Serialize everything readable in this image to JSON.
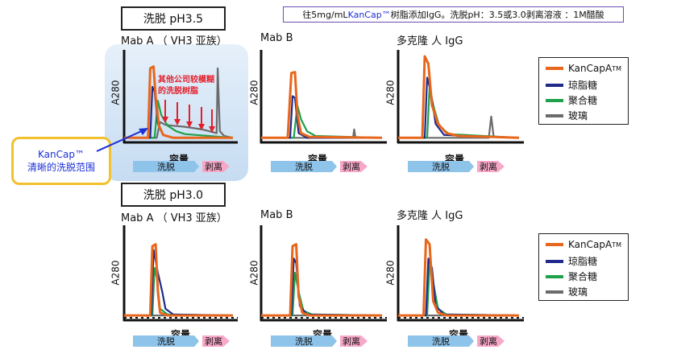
{
  "header_note": {
    "prefix": "往5mg/mL ",
    "highlight": "KanCap™",
    "suffix": " 树脂添加IgG。洗脱pH：3.5或3.0剥离溶液 ：1M醋酸"
  },
  "sections": [
    {
      "title": "洗脱 pH3.5"
    },
    {
      "title": "洗脱 pH3.0"
    }
  ],
  "panel_titles": [
    "Mab A （ VH3 亚族）",
    "Mab B",
    "多克隆 人 IgG"
  ],
  "y_label": "A280",
  "x_label": "容量",
  "arrow_labels": {
    "elution": "洗脱",
    "strip": "剥离"
  },
  "legend": [
    {
      "label": "KanCapA",
      "sup": "TM",
      "color": "#e8661c"
    },
    {
      "label": "琼脂糖",
      "sup": "",
      "color": "#1f2a8a"
    },
    {
      "label": "聚合糖",
      "sup": "",
      "color": "#1fa04a"
    },
    {
      "label": "玻璃",
      "sup": "",
      "color": "#6b6b6b"
    }
  ],
  "callout": {
    "line1": "KanCap™",
    "line2": "清晰的洗脱范围"
  },
  "annotation": {
    "line1": "其他公司较模糊",
    "line2": "的洗脱树脂"
  },
  "colors": {
    "kancap": "#e8661c",
    "agarose": "#1f2a8a",
    "polysaccharide": "#1fa04a",
    "glass": "#6b6b6b",
    "arrow_elution": "#8ec3ea",
    "arrow_strip": "#f7a8c8",
    "annotation": "#e41e2b"
  },
  "chart_data": [
    {
      "type": "line",
      "section": "洗脱 pH3.5",
      "title": "Mab A （ VH3 亚族）",
      "xlabel": "容量",
      "ylabel": "A280",
      "x_range": [
        0,
        100
      ],
      "y_range": [
        0,
        100
      ],
      "series": [
        {
          "name": "KanCapA™",
          "points": [
            [
              0,
              5
            ],
            [
              22,
              5
            ],
            [
              24,
              80
            ],
            [
              27,
              82
            ],
            [
              29,
              50
            ],
            [
              32,
              18
            ],
            [
              36,
              8
            ],
            [
              45,
              5
            ],
            [
              100,
              5
            ]
          ]
        },
        {
          "name": "琼脂糖",
          "points": [
            [
              0,
              5
            ],
            [
              24,
              5
            ],
            [
              26,
              60
            ],
            [
              28,
              55
            ],
            [
              31,
              20
            ],
            [
              36,
              8
            ],
            [
              45,
              5
            ],
            [
              100,
              5
            ]
          ]
        },
        {
          "name": "聚合糖",
          "points": [
            [
              0,
              5
            ],
            [
              28,
              5
            ],
            [
              31,
              45
            ],
            [
              34,
              30
            ],
            [
              40,
              18
            ],
            [
              48,
              12
            ],
            [
              56,
              9
            ],
            [
              100,
              5
            ]
          ]
        },
        {
          "name": "玻璃",
          "points": [
            [
              0,
              5
            ],
            [
              30,
              5
            ],
            [
              33,
              22
            ],
            [
              38,
              19
            ],
            [
              45,
              18
            ],
            [
              55,
              17
            ],
            [
              72,
              14
            ],
            [
              85,
              10
            ],
            [
              86,
              80
            ],
            [
              88,
              12
            ],
            [
              92,
              7
            ],
            [
              100,
              5
            ]
          ]
        }
      ]
    },
    {
      "type": "line",
      "section": "洗脱 pH3.5",
      "title": "Mab B",
      "xlabel": "容量",
      "ylabel": "A280",
      "x_range": [
        0,
        100
      ],
      "y_range": [
        0,
        100
      ],
      "series": [
        {
          "name": "KanCapA™",
          "points": [
            [
              0,
              5
            ],
            [
              22,
              5
            ],
            [
              25,
              75
            ],
            [
              28,
              76
            ],
            [
              30,
              30
            ],
            [
              33,
              10
            ],
            [
              40,
              6
            ],
            [
              100,
              5
            ]
          ]
        },
        {
          "name": "琼脂糖",
          "points": [
            [
              0,
              5
            ],
            [
              24,
              5
            ],
            [
              26,
              50
            ],
            [
              28,
              48
            ],
            [
              31,
              10
            ],
            [
              38,
              5
            ],
            [
              100,
              5
            ]
          ]
        },
        {
          "name": "聚合糖",
          "points": [
            [
              0,
              5
            ],
            [
              27,
              5
            ],
            [
              30,
              40
            ],
            [
              33,
              25
            ],
            [
              38,
              12
            ],
            [
              45,
              7
            ],
            [
              100,
              5
            ]
          ]
        },
        {
          "name": "玻璃",
          "points": [
            [
              0,
              5
            ],
            [
              76,
              5
            ],
            [
              77,
              14
            ],
            [
              78,
              5
            ],
            [
              100,
              5
            ]
          ]
        }
      ]
    },
    {
      "type": "line",
      "section": "洗脱 pH3.5",
      "title": "多克隆 人 IgG",
      "xlabel": "容量",
      "ylabel": "A280",
      "x_range": [
        0,
        100
      ],
      "y_range": [
        0,
        100
      ],
      "series": [
        {
          "name": "KanCapA™",
          "points": [
            [
              0,
              5
            ],
            [
              20,
              5
            ],
            [
              22,
              93
            ],
            [
              25,
              85
            ],
            [
              28,
              40
            ],
            [
              33,
              20
            ],
            [
              40,
              10
            ],
            [
              50,
              7
            ],
            [
              100,
              5
            ]
          ]
        },
        {
          "name": "琼脂糖",
          "points": [
            [
              0,
              5
            ],
            [
              22,
              5
            ],
            [
              24,
              70
            ],
            [
              27,
              55
            ],
            [
              31,
              20
            ],
            [
              38,
              8
            ],
            [
              100,
              5
            ]
          ]
        },
        {
          "name": "聚合糖",
          "points": [
            [
              0,
              5
            ],
            [
              24,
              5
            ],
            [
              26,
              60
            ],
            [
              29,
              40
            ],
            [
              34,
              18
            ],
            [
              42,
              9
            ],
            [
              100,
              5
            ]
          ]
        },
        {
          "name": "玻璃",
          "points": [
            [
              0,
              5
            ],
            [
              75,
              5
            ],
            [
              77,
              28
            ],
            [
              79,
              6
            ],
            [
              100,
              5
            ]
          ]
        }
      ]
    },
    {
      "type": "line",
      "section": "洗脱 pH3.0",
      "title": "Mab A （ VH3 亚族）",
      "xlabel": "容量",
      "ylabel": "A280",
      "x_range": [
        0,
        100
      ],
      "y_range": [
        0,
        100
      ],
      "series": [
        {
          "name": "KanCapA™",
          "points": [
            [
              0,
              5
            ],
            [
              24,
              5
            ],
            [
              26,
              78
            ],
            [
              29,
              80
            ],
            [
              31,
              30
            ],
            [
              33,
              8
            ],
            [
              40,
              5
            ],
            [
              100,
              5
            ]
          ]
        },
        {
          "name": "琼脂糖",
          "points": [
            [
              0,
              5
            ],
            [
              25,
              5
            ],
            [
              27,
              74
            ],
            [
              31,
              50
            ],
            [
              35,
              30
            ],
            [
              38,
              12
            ],
            [
              45,
              6
            ],
            [
              100,
              5
            ]
          ]
        },
        {
          "name": "聚合糖",
          "points": [
            [
              0,
              5
            ],
            [
              26,
              5
            ],
            [
              28,
              55
            ],
            [
              30,
              45
            ],
            [
              33,
              12
            ],
            [
              40,
              6
            ],
            [
              100,
              5
            ]
          ]
        },
        {
          "name": "玻璃",
          "points": [
            [
              0,
              5
            ],
            [
              100,
              5
            ]
          ]
        }
      ]
    },
    {
      "type": "line",
      "section": "洗脱 pH3.0",
      "title": "Mab B",
      "xlabel": "容量",
      "ylabel": "A280",
      "x_range": [
        0,
        100
      ],
      "y_range": [
        0,
        100
      ],
      "series": [
        {
          "name": "KanCapA™",
          "points": [
            [
              0,
              5
            ],
            [
              24,
              5
            ],
            [
              26,
              78
            ],
            [
              29,
              80
            ],
            [
              31,
              25
            ],
            [
              34,
              8
            ],
            [
              40,
              5
            ],
            [
              100,
              5
            ]
          ]
        },
        {
          "name": "琼脂糖",
          "points": [
            [
              0,
              5
            ],
            [
              25,
              5
            ],
            [
              27,
              65
            ],
            [
              29,
              60
            ],
            [
              32,
              15
            ],
            [
              38,
              6
            ],
            [
              100,
              5
            ]
          ]
        },
        {
          "name": "聚合糖",
          "points": [
            [
              0,
              5
            ],
            [
              26,
              5
            ],
            [
              28,
              50
            ],
            [
              31,
              30
            ],
            [
              35,
              10
            ],
            [
              42,
              6
            ],
            [
              100,
              5
            ]
          ]
        },
        {
          "name": "玻璃",
          "points": [
            [
              0,
              5
            ],
            [
              100,
              5
            ]
          ]
        }
      ]
    },
    {
      "type": "line",
      "section": "洗脱 pH3.0",
      "title": "多克隆 人 IgG",
      "xlabel": "容量",
      "ylabel": "A280",
      "x_range": [
        0,
        100
      ],
      "y_range": [
        0,
        100
      ],
      "series": [
        {
          "name": "KanCapA™",
          "points": [
            [
              0,
              5
            ],
            [
              21,
              5
            ],
            [
              23,
              85
            ],
            [
              26,
              80
            ],
            [
              29,
              20
            ],
            [
              33,
              8
            ],
            [
              40,
              5
            ],
            [
              100,
              5
            ]
          ]
        },
        {
          "name": "琼脂糖",
          "points": [
            [
              0,
              5
            ],
            [
              23,
              5
            ],
            [
              25,
              65
            ],
            [
              28,
              55
            ],
            [
              31,
              15
            ],
            [
              38,
              6
            ],
            [
              100,
              5
            ]
          ]
        },
        {
          "name": "聚合糖",
          "points": [
            [
              0,
              5
            ],
            [
              24,
              5
            ],
            [
              26,
              60
            ],
            [
              29,
              40
            ],
            [
              33,
              12
            ],
            [
              40,
              6
            ],
            [
              100,
              5
            ]
          ]
        },
        {
          "name": "玻璃",
          "points": [
            [
              0,
              5
            ],
            [
              100,
              5
            ]
          ]
        }
      ]
    }
  ]
}
